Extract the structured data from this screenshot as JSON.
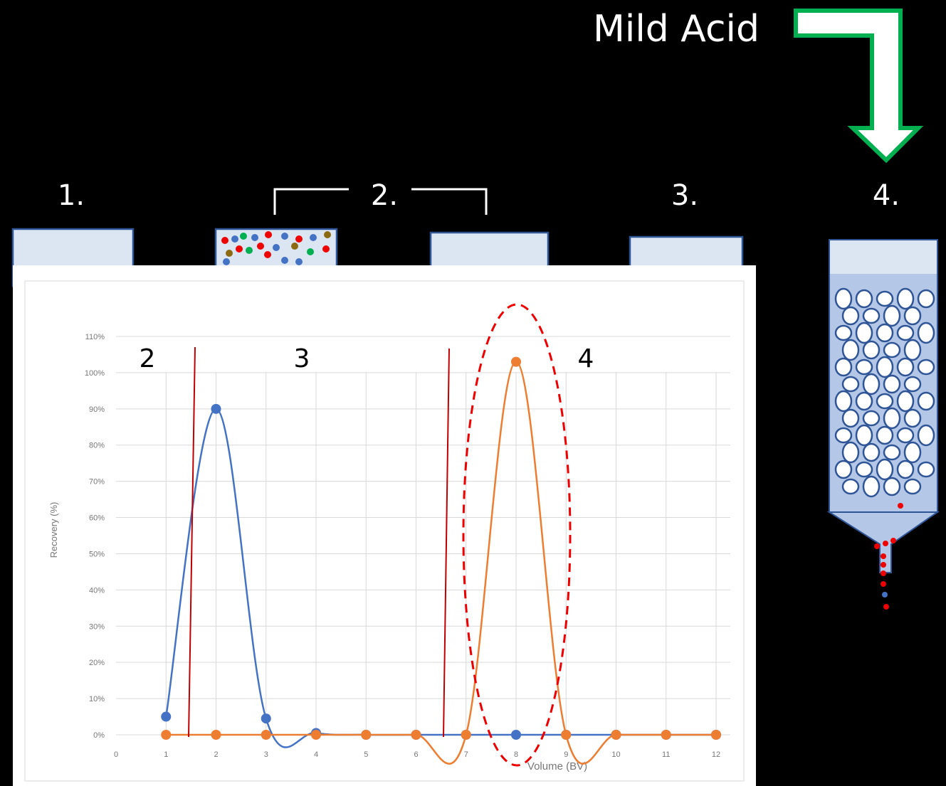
{
  "slide": {
    "arrow_label": "Mild Acid",
    "steps": [
      "1.",
      "2.",
      "3.",
      "4."
    ],
    "regions": [
      "2",
      "3",
      "4"
    ]
  },
  "chart_data": {
    "type": "line",
    "x_label": "Volume (BV)",
    "y_label": "Recovery (%)",
    "x": [
      1,
      2,
      3,
      4,
      5,
      6,
      7,
      8,
      9,
      10,
      11,
      12
    ],
    "series": [
      {
        "color": "#4472c4",
        "values": [
          5,
          90,
          4.5,
          0.5,
          0,
          0,
          0,
          0,
          0,
          0,
          0,
          0
        ]
      },
      {
        "color": "#ed7d31",
        "values": [
          0,
          0,
          0,
          0,
          0,
          0,
          0,
          103,
          0,
          0,
          0,
          0
        ]
      }
    ],
    "xlim": [
      0,
      12
    ],
    "xticks": [
      0,
      1,
      2,
      3,
      4,
      5,
      6,
      7,
      8,
      9,
      10,
      11,
      12
    ],
    "ylim": [
      0,
      110
    ],
    "yticks": [
      {
        "value": 0,
        "label": "0%"
      },
      {
        "value": 10,
        "label": "10%"
      },
      {
        "value": 20,
        "label": "20%"
      },
      {
        "value": 30,
        "label": "30%"
      },
      {
        "value": 40,
        "label": "40%"
      },
      {
        "value": 50,
        "label": "50%"
      },
      {
        "value": 60,
        "label": "60%"
      },
      {
        "value": 70,
        "label": "70%"
      },
      {
        "value": 80,
        "label": "80%"
      },
      {
        "value": 90,
        "label": "90%"
      },
      {
        "value": 100,
        "label": "100%"
      },
      {
        "value": 110,
        "label": "110%"
      }
    ],
    "grid": true
  }
}
